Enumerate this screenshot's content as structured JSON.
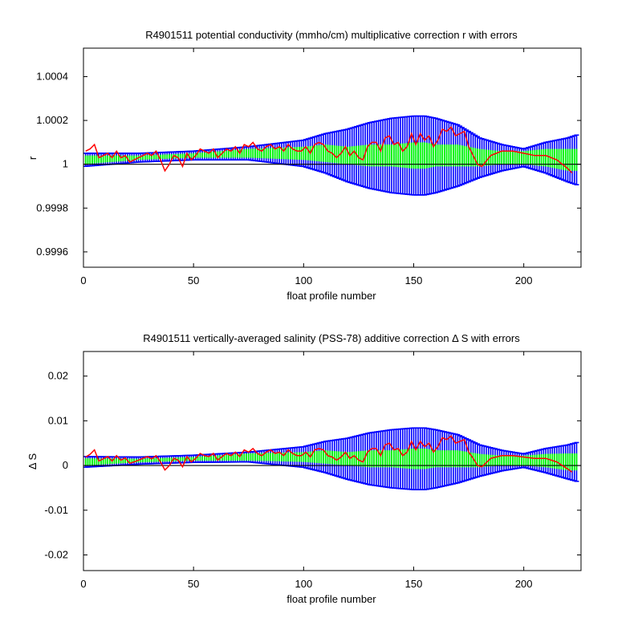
{
  "colors": {
    "band_outer": "#0000ff",
    "band_inner": "#00ff00",
    "series_line": "#ff0000",
    "reference_line": "#000000",
    "background": "#ffffff"
  },
  "chart_data": [
    {
      "type": "line",
      "title": "R4901511 potential conductivity (mmho/cm) multiplicative correction r with errors",
      "xlabel": "float profile number",
      "ylabel": "r",
      "xlim": [
        0,
        226
      ],
      "ylim": [
        0.99953,
        1.00053
      ],
      "xticks": [
        0,
        50,
        100,
        150,
        200
      ],
      "xtick_labels": [
        "0",
        "50",
        "100",
        "150",
        "200"
      ],
      "yticks": [
        0.9996,
        0.9998,
        1.0,
        1.0002,
        1.0004
      ],
      "ytick_labels": [
        "0.9996",
        "0.9998",
        "1",
        "1.0002",
        "1.0004"
      ],
      "reference_line": 1.0,
      "grid": false,
      "series": [
        {
          "x": [
            1,
            3,
            5,
            7,
            9,
            11,
            13,
            15,
            17,
            19,
            21,
            23,
            25,
            27,
            29,
            31,
            33,
            35,
            37,
            39,
            41,
            43,
            45,
            47,
            49,
            51,
            53,
            55,
            57,
            59,
            61,
            63,
            65,
            67,
            69,
            71,
            73,
            75,
            77,
            79,
            81,
            83,
            85,
            87,
            89,
            91,
            93,
            95,
            97,
            99,
            101,
            103,
            105,
            107,
            109,
            111,
            113,
            115,
            117,
            119,
            121,
            123,
            125,
            127,
            129,
            131,
            133,
            135,
            137,
            139,
            141,
            143,
            145,
            147,
            149,
            151,
            153,
            155,
            157,
            159,
            161,
            163,
            165,
            167,
            169,
            171,
            173,
            175,
            177,
            179,
            181,
            185,
            190,
            195,
            200,
            205,
            210,
            215,
            220,
            222
          ],
          "values": [
            1.00006,
            1.00007,
            1.00009,
            1.00003,
            1.00004,
            1.00005,
            1.00003,
            1.00006,
            1.00003,
            1.00004,
            1.00001,
            1.00002,
            1.00003,
            1.00004,
            1.00005,
            1.00004,
            1.00006,
            1.00002,
            0.99997,
            1.0,
            1.00004,
            1.00003,
            0.99999,
            1.00005,
            1.00002,
            1.00004,
            1.00007,
            1.00006,
            1.00005,
            1.00007,
            1.00003,
            1.00005,
            1.00007,
            1.00006,
            1.00008,
            1.00005,
            1.00009,
            1.00008,
            1.0001,
            1.00007,
            1.00006,
            1.00008,
            1.00009,
            1.00007,
            1.00008,
            1.00006,
            1.00009,
            1.00007,
            1.00006,
            1.00006,
            1.00008,
            1.00005,
            1.00009,
            1.0001,
            1.00009,
            1.00006,
            1.00005,
            1.00003,
            1.00005,
            1.00008,
            1.00004,
            1.00006,
            1.00003,
            1.00002,
            1.00008,
            1.0001,
            1.0001,
            1.00006,
            1.00012,
            1.00013,
            1.00009,
            1.0001,
            1.00006,
            1.00008,
            1.00014,
            1.00009,
            1.00014,
            1.00011,
            1.00013,
            1.00008,
            1.00011,
            1.00016,
            1.00015,
            1.00017,
            1.00013,
            1.00014,
            1.00015,
            1.00008,
            1.00004,
            1.0,
            0.99999,
            1.00004,
            1.00006,
            1.00006,
            1.00005,
            1.00004,
            1.00004,
            1.00002,
            0.99998,
            0.99996
          ]
        }
      ],
      "error_band_outer": {
        "x": [
          0,
          25,
          50,
          75,
          100,
          110,
          120,
          130,
          140,
          150,
          155,
          160,
          170,
          180,
          190,
          200,
          210,
          220,
          226
        ],
        "half_width": [
          3e-05,
          2e-05,
          2e-05,
          3e-05,
          6e-05,
          9e-05,
          0.00012,
          0.00015,
          0.00017,
          0.00018,
          0.00018,
          0.00017,
          0.00014,
          9e-05,
          6e-05,
          4e-05,
          7e-05,
          0.0001,
          0.00012
        ],
        "center": [
          1.00002,
          1.00003,
          1.00004,
          1.00005,
          1.00005,
          1.00005,
          1.00004,
          1.00004,
          1.00004,
          1.00004,
          1.00004,
          1.00004,
          1.00004,
          1.00003,
          1.00003,
          1.00003,
          1.00003,
          1.00002,
          1.00002
        ]
      },
      "error_band_inner": {
        "x": [
          0,
          25,
          50,
          75,
          100,
          110,
          120,
          130,
          140,
          150,
          155,
          160,
          170,
          180,
          190,
          200,
          210,
          220,
          226
        ],
        "half_width": [
          2e-05,
          1e-05,
          1e-05,
          2e-05,
          3e-05,
          4e-05,
          4e-05,
          5e-05,
          5e-05,
          6e-05,
          6e-05,
          5e-05,
          5e-05,
          4e-05,
          3e-05,
          3e-05,
          4e-05,
          5e-05,
          5e-05
        ]
      }
    },
    {
      "type": "line",
      "title": "R4901511 vertically-averaged salinity (PSS-78) additive correction Δ S with errors",
      "xlabel": "float profile number",
      "ylabel": "Δ S",
      "xlim": [
        0,
        226
      ],
      "ylim": [
        -0.0235,
        0.0255
      ],
      "xticks": [
        0,
        50,
        100,
        150,
        200
      ],
      "xtick_labels": [
        "0",
        "50",
        "100",
        "150",
        "200"
      ],
      "yticks": [
        -0.02,
        -0.01,
        0,
        0.01,
        0.02
      ],
      "ytick_labels": [
        "-0.02",
        "-0.01",
        "0",
        "0.01",
        "0.02"
      ],
      "reference_line": 0,
      "grid": false,
      "series": [
        {
          "x": [
            1,
            3,
            5,
            7,
            9,
            11,
            13,
            15,
            17,
            19,
            21,
            23,
            25,
            27,
            29,
            31,
            33,
            35,
            37,
            39,
            41,
            43,
            45,
            47,
            49,
            51,
            53,
            55,
            57,
            59,
            61,
            63,
            65,
            67,
            69,
            71,
            73,
            75,
            77,
            79,
            81,
            83,
            85,
            87,
            89,
            91,
            93,
            95,
            97,
            99,
            101,
            103,
            105,
            107,
            109,
            111,
            113,
            115,
            117,
            119,
            121,
            123,
            125,
            127,
            129,
            131,
            133,
            135,
            137,
            139,
            141,
            143,
            145,
            147,
            149,
            151,
            153,
            155,
            157,
            159,
            161,
            163,
            165,
            167,
            169,
            171,
            173,
            175,
            177,
            179,
            181,
            185,
            190,
            195,
            200,
            205,
            210,
            215,
            220,
            222
          ],
          "values": [
            0.0019,
            0.0025,
            0.0035,
            0.001,
            0.0015,
            0.002,
            0.001,
            0.0022,
            0.0012,
            0.0017,
            0.0005,
            0.0008,
            0.0012,
            0.0016,
            0.002,
            0.0015,
            0.0022,
            0.0008,
            -0.001,
            0.0,
            0.0016,
            0.0012,
            -0.0003,
            0.002,
            0.0008,
            0.0016,
            0.0027,
            0.0022,
            0.002,
            0.0027,
            0.0012,
            0.002,
            0.0027,
            0.0022,
            0.003,
            0.002,
            0.0035,
            0.003,
            0.0038,
            0.0027,
            0.0022,
            0.003,
            0.0035,
            0.0027,
            0.003,
            0.0022,
            0.0035,
            0.0027,
            0.0022,
            0.0022,
            0.003,
            0.0019,
            0.0035,
            0.0038,
            0.0035,
            0.0022,
            0.0019,
            0.0012,
            0.0019,
            0.003,
            0.0016,
            0.0022,
            0.0012,
            0.0008,
            0.003,
            0.0038,
            0.0038,
            0.0022,
            0.0046,
            0.005,
            0.0035,
            0.0038,
            0.0022,
            0.003,
            0.0054,
            0.0035,
            0.0054,
            0.0042,
            0.005,
            0.003,
            0.0042,
            0.0062,
            0.0058,
            0.0066,
            0.005,
            0.0054,
            0.0058,
            0.003,
            0.0016,
            0.0,
            -0.0003,
            0.0016,
            0.0022,
            0.0022,
            0.0019,
            0.0016,
            0.0016,
            0.0008,
            -0.0008,
            -0.0015
          ]
        }
      ],
      "error_band_outer": {
        "x": [
          0,
          25,
          50,
          75,
          100,
          110,
          120,
          130,
          140,
          150,
          155,
          160,
          170,
          180,
          190,
          200,
          210,
          220,
          226
        ],
        "half_width": [
          0.0012,
          0.0008,
          0.0008,
          0.0011,
          0.0023,
          0.0035,
          0.0046,
          0.0058,
          0.0065,
          0.0069,
          0.0069,
          0.0065,
          0.0054,
          0.0035,
          0.0023,
          0.0015,
          0.0027,
          0.0038,
          0.0046
        ],
        "center": [
          0.0008,
          0.0011,
          0.0015,
          0.0019,
          0.0019,
          0.0019,
          0.0015,
          0.0015,
          0.0015,
          0.0015,
          0.0015,
          0.0015,
          0.0015,
          0.0011,
          0.0011,
          0.0011,
          0.0011,
          0.0008,
          0.0008
        ]
      },
      "error_band_inner": {
        "x": [
          0,
          25,
          50,
          75,
          100,
          110,
          120,
          130,
          140,
          150,
          155,
          160,
          170,
          180,
          190,
          200,
          210,
          220,
          226
        ],
        "half_width": [
          0.0008,
          0.0004,
          0.0004,
          0.0008,
          0.0011,
          0.0015,
          0.0015,
          0.0019,
          0.0019,
          0.0023,
          0.0023,
          0.0019,
          0.0019,
          0.0015,
          0.0011,
          0.0011,
          0.0015,
          0.0019,
          0.0019
        ]
      }
    }
  ]
}
